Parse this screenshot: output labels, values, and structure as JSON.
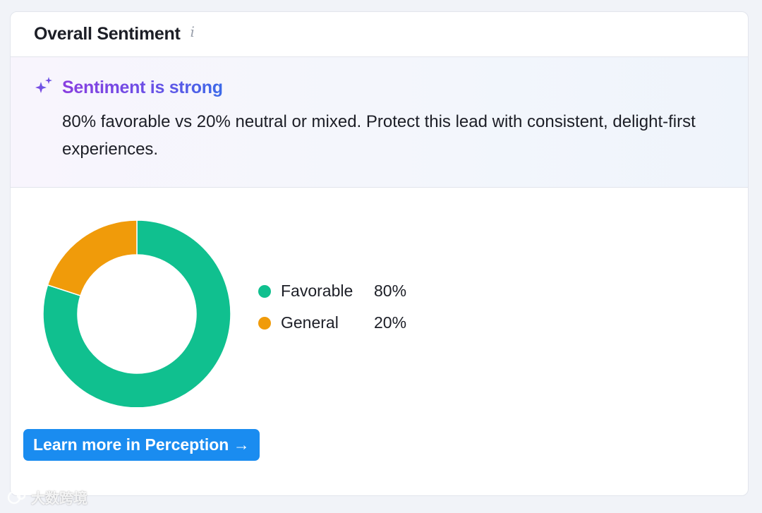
{
  "header": {
    "title": "Overall Sentiment",
    "info_icon": "info-icon"
  },
  "insight": {
    "icon": "sparkle-icon",
    "title": "Sentiment is strong",
    "text": "80% favorable vs 20% neutral or mixed. Protect this lead with consistent, delight-first experiences."
  },
  "chart_data": {
    "type": "pie",
    "donut": true,
    "categories": [
      "Favorable",
      "General"
    ],
    "values": [
      80,
      20
    ],
    "value_labels": [
      "80%",
      "20%"
    ],
    "colors": [
      "#10c08f",
      "#f09b0a"
    ],
    "legend_position": "right"
  },
  "cta": {
    "label": "Learn more in Perception →"
  },
  "watermark": {
    "text": "大数跨境"
  }
}
